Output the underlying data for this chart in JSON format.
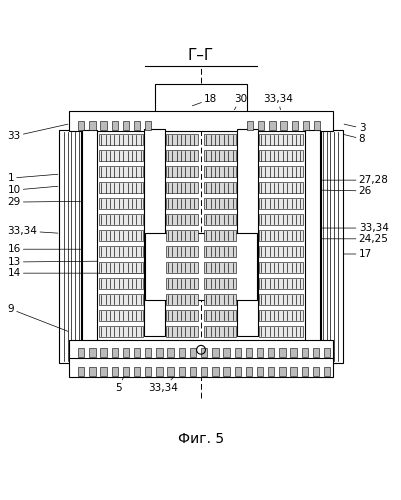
{
  "title": "Г–Г",
  "fig_label": "Фиг. 5",
  "bg_color": "#ffffff",
  "line_color": "#000000",
  "fig_width": 4.02,
  "fig_height": 5.0,
  "dpi": 100
}
